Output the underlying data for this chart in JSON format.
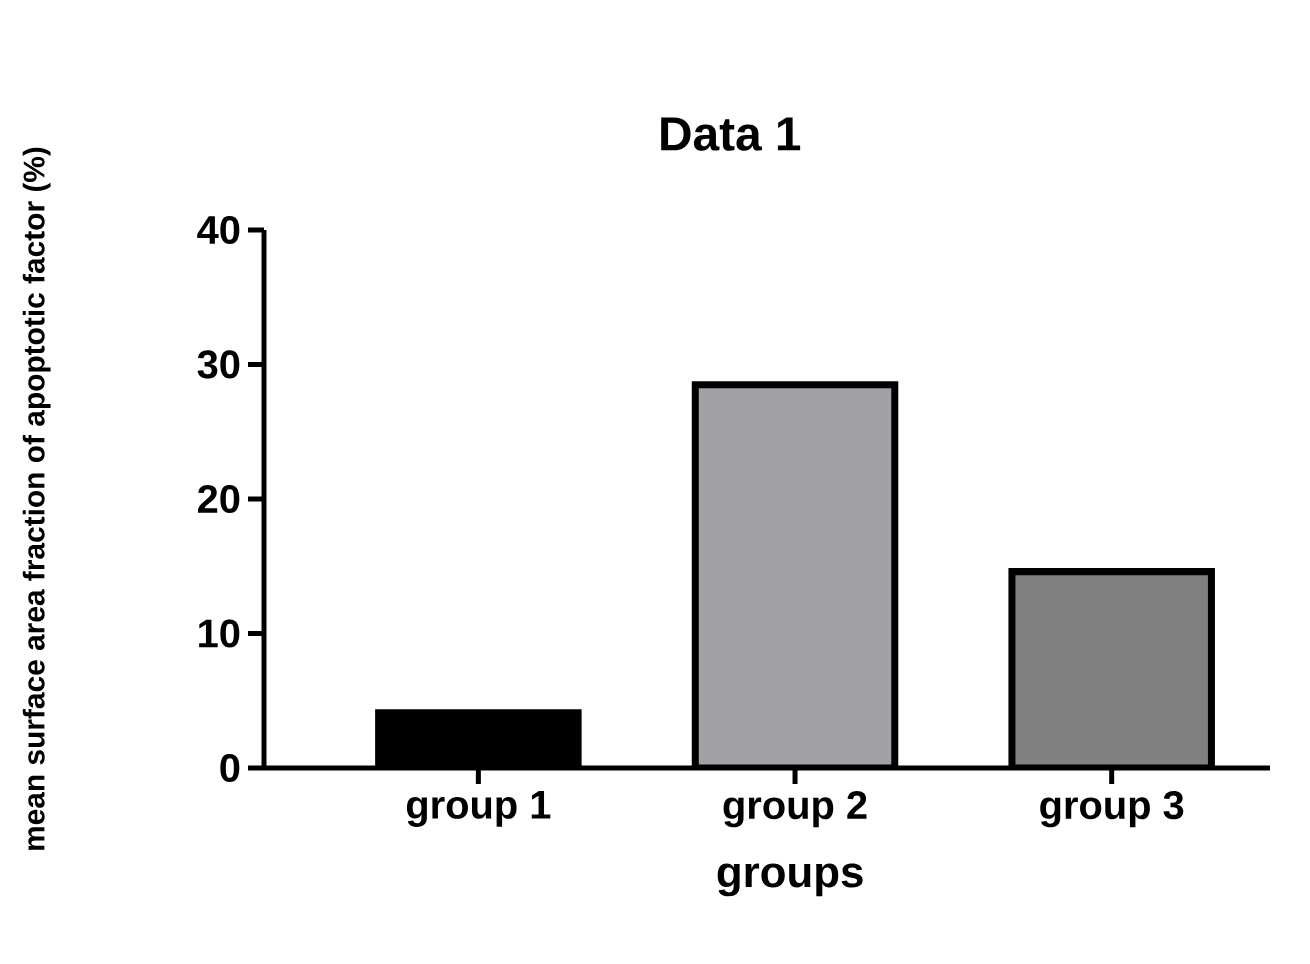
{
  "chart_data": {
    "type": "bar",
    "title": "Data 1",
    "xlabel": "groups",
    "ylabel": "mean surface area fraction of apoptotic factor (%)",
    "categories": [
      "group 1",
      "group 2",
      "group 3"
    ],
    "values": [
      4.1,
      28.5,
      14.6
    ],
    "colors": [
      "#000000",
      "#a2a1a6",
      "#808080"
    ],
    "ylim": [
      0,
      40
    ],
    "yticks": [
      0,
      10,
      20,
      30,
      40
    ]
  }
}
